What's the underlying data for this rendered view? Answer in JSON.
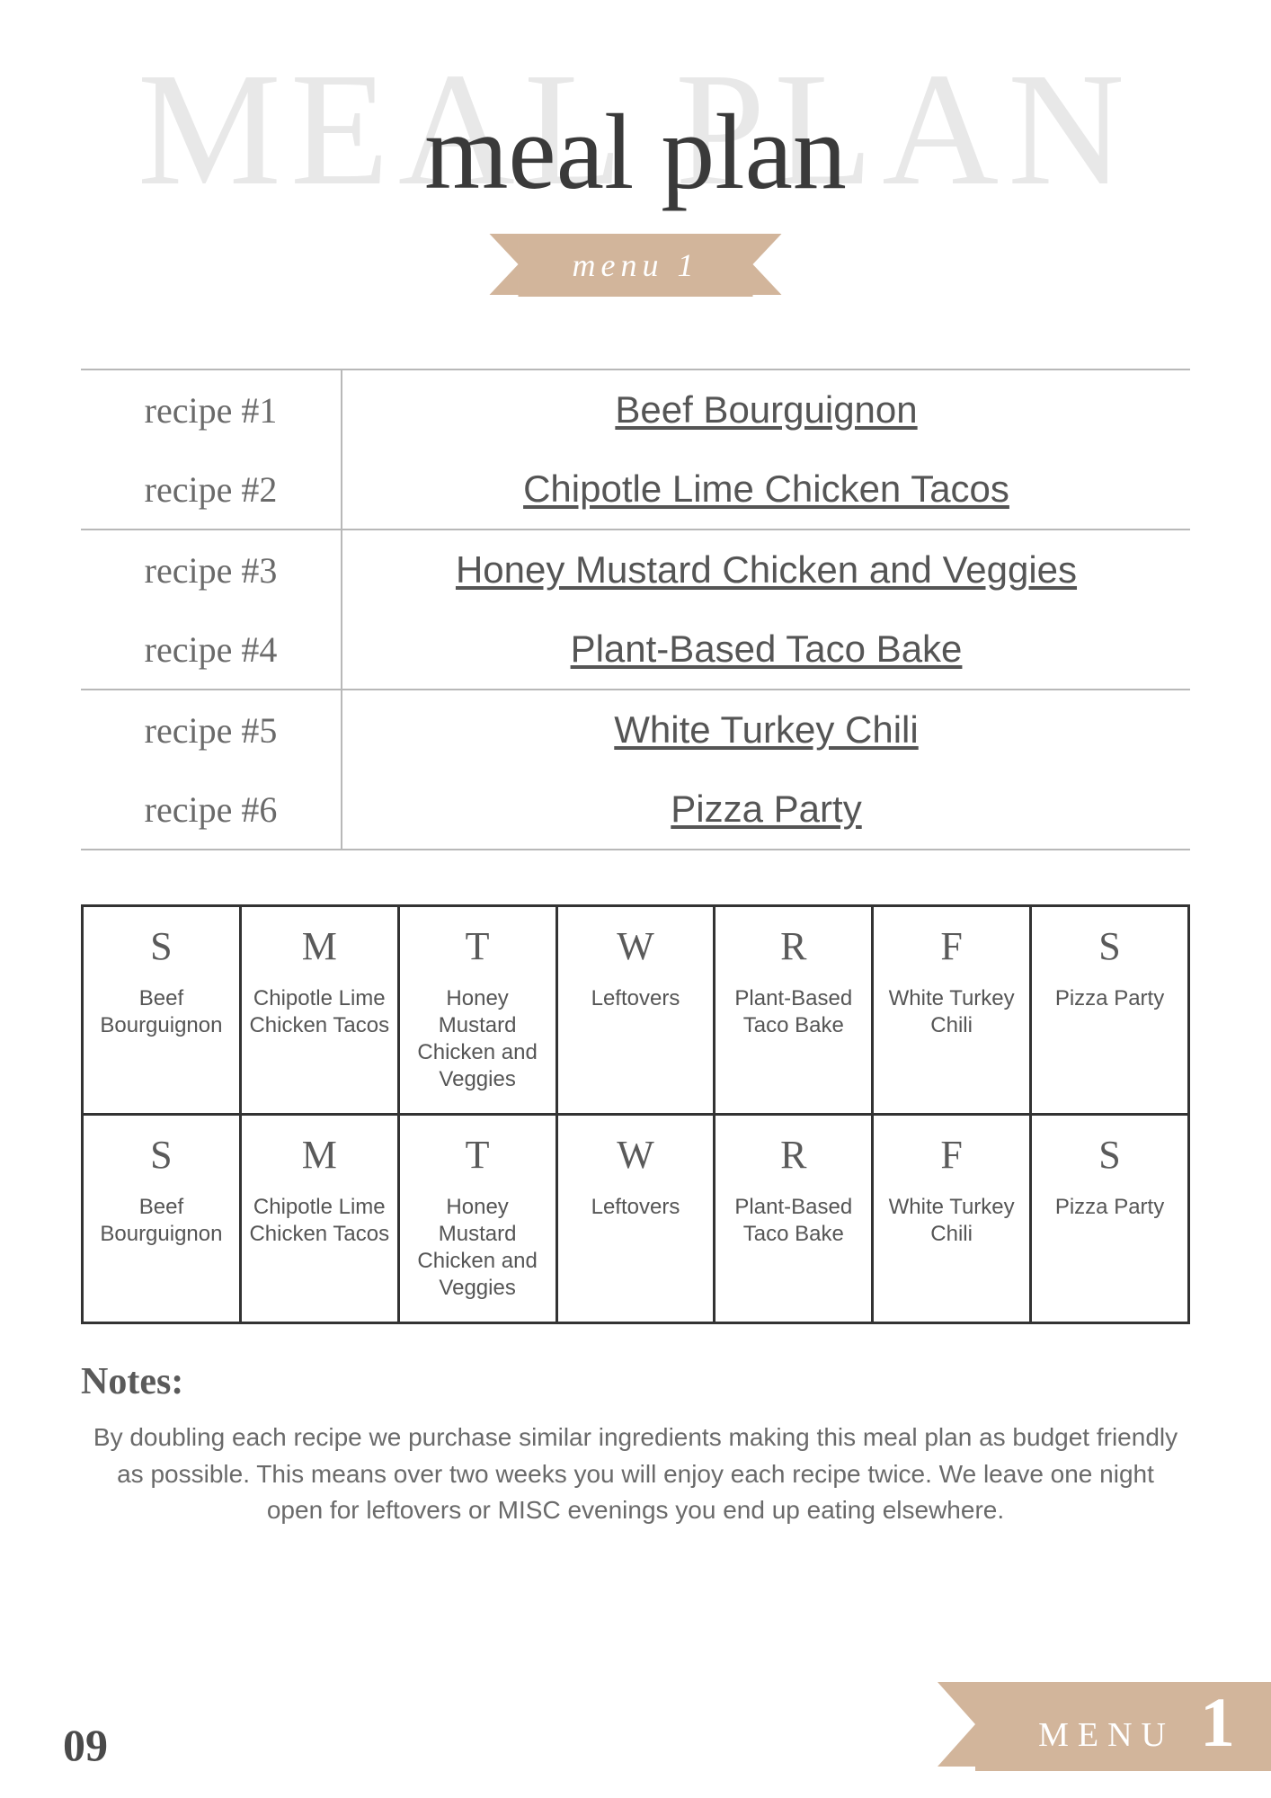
{
  "header": {
    "bg_title": "MEAL PLAN",
    "script_title": "meal plan",
    "ribbon_label": "menu 1"
  },
  "recipes": [
    {
      "label": "recipe #1",
      "name": "Beef Bourguignon"
    },
    {
      "label": "recipe #2",
      "name": "Chipotle Lime Chicken Tacos"
    },
    {
      "label": "recipe #3",
      "name": "Honey Mustard Chicken and Veggies"
    },
    {
      "label": "recipe #4",
      "name": "Plant-Based Taco Bake"
    },
    {
      "label": "recipe #5",
      "name": "White Turkey Chili"
    },
    {
      "label": "recipe #6",
      "name": "Pizza Party"
    }
  ],
  "calendar": {
    "day_letters": [
      "S",
      "M",
      "T",
      "W",
      "R",
      "F",
      "S"
    ],
    "weeks": [
      [
        "Beef Bourguignon",
        "Chipotle Lime Chicken Tacos",
        "Honey Mustard Chicken and Veggies",
        "Leftovers",
        "Plant-Based Taco Bake",
        "White Turkey Chili",
        "Pizza Party"
      ],
      [
        "Beef Bourguignon",
        "Chipotle Lime Chicken Tacos",
        "Honey Mustard Chicken and Veggies",
        "Leftovers",
        "Plant-Based Taco Bake",
        "White Turkey Chili",
        "Pizza Party"
      ]
    ]
  },
  "notes": {
    "heading": "Notes:",
    "body": "By doubling each recipe we purchase similar ingredients making this meal plan as budget friendly as possible. This means over two weeks you will enjoy each recipe twice. We leave one night open for leftovers or MISC evenings you end up eating elsewhere."
  },
  "footer": {
    "page_number": "09",
    "menu_word": "MENU",
    "menu_number": "1"
  },
  "colors": {
    "ribbon": "#d2b59b",
    "light_gray_text": "#e8e8e8",
    "border_gray": "#b8b8b8",
    "calendar_border": "#333333",
    "body_text": "#555555"
  }
}
